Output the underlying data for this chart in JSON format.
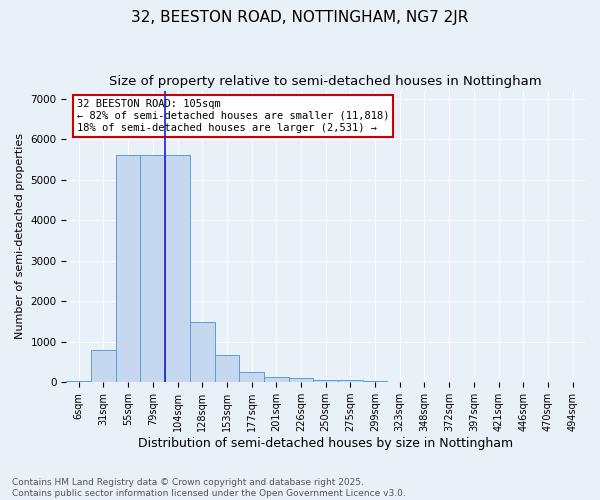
{
  "title": "32, BEESTON ROAD, NOTTINGHAM, NG7 2JR",
  "subtitle": "Size of property relative to semi-detached houses in Nottingham",
  "xlabel": "Distribution of semi-detached houses by size in Nottingham",
  "ylabel": "Number of semi-detached properties",
  "categories": [
    "6sqm",
    "31sqm",
    "55sqm",
    "79sqm",
    "104sqm",
    "128sqm",
    "153sqm",
    "177sqm",
    "201sqm",
    "226sqm",
    "250sqm",
    "275sqm",
    "299sqm",
    "323sqm",
    "348sqm",
    "372sqm",
    "397sqm",
    "421sqm",
    "446sqm",
    "470sqm",
    "494sqm"
  ],
  "values": [
    30,
    800,
    5600,
    5600,
    5600,
    1480,
    680,
    260,
    140,
    95,
    60,
    60,
    30,
    0,
    0,
    0,
    0,
    0,
    0,
    0,
    0
  ],
  "bar_color": "#c5d8f0",
  "bar_edge_color": "#5a9fd4",
  "vline_index": 4,
  "vline_color": "#2020cc",
  "annotation_text": "32 BEESTON ROAD: 105sqm\n← 82% of semi-detached houses are smaller (11,818)\n18% of semi-detached houses are larger (2,531) →",
  "annotation_box_color": "#ffffff",
  "annotation_box_edge_color": "#cc0000",
  "ylim": [
    0,
    7200
  ],
  "yticks": [
    0,
    1000,
    2000,
    3000,
    4000,
    5000,
    6000,
    7000
  ],
  "bg_color": "#e8f0f8",
  "grid_color": "#ffffff",
  "footer": "Contains HM Land Registry data © Crown copyright and database right 2025.\nContains public sector information licensed under the Open Government Licence v3.0.",
  "title_fontsize": 11,
  "subtitle_fontsize": 9.5,
  "xlabel_fontsize": 9,
  "ylabel_fontsize": 8,
  "tick_fontsize": 7.5,
  "footer_fontsize": 6.5
}
